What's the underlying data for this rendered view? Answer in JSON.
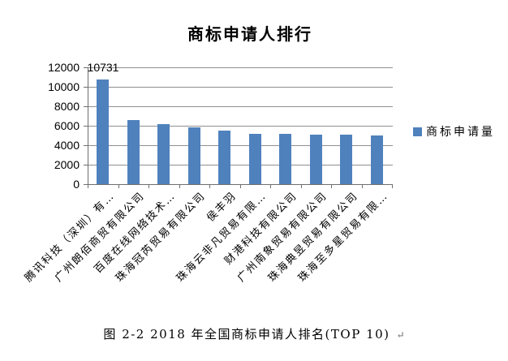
{
  "caption": {
    "text": "图 2-2  2018 年全国商标申请人排名(TOP 10)",
    "return_mark": "↵"
  },
  "chart_data": {
    "type": "bar",
    "title": "商标申请人排行",
    "categories": [
      "腾讯科技（深圳）有…",
      "广州朗佰商贸有限公司",
      "百度在线网络技术…",
      "珠海冠芮贸易有限公司",
      "侯丰羽",
      "珠海云非凡贸易有限…",
      "财港科技有限公司",
      "广州南象贸易有限公司",
      "珠海典昱贸易有限公司",
      "珠海至多星贸易有限…"
    ],
    "series": [
      {
        "name": "商标申请量",
        "values": [
          10731,
          6600,
          6200,
          5800,
          5500,
          5160,
          5160,
          5050,
          5050,
          4970
        ]
      }
    ],
    "data_label": {
      "index": 0,
      "text": "10731"
    },
    "xlabel": "",
    "ylabel": "",
    "ylim": [
      0,
      12000
    ],
    "yticks": [
      12000,
      10000,
      8000,
      6000,
      4000,
      2000,
      0
    ],
    "grid": true,
    "legend_position": "right",
    "colors": {
      "bar": "#4F81BD",
      "gridline": "#909090",
      "axis": "#6F6F6F",
      "text": "#000000"
    }
  }
}
